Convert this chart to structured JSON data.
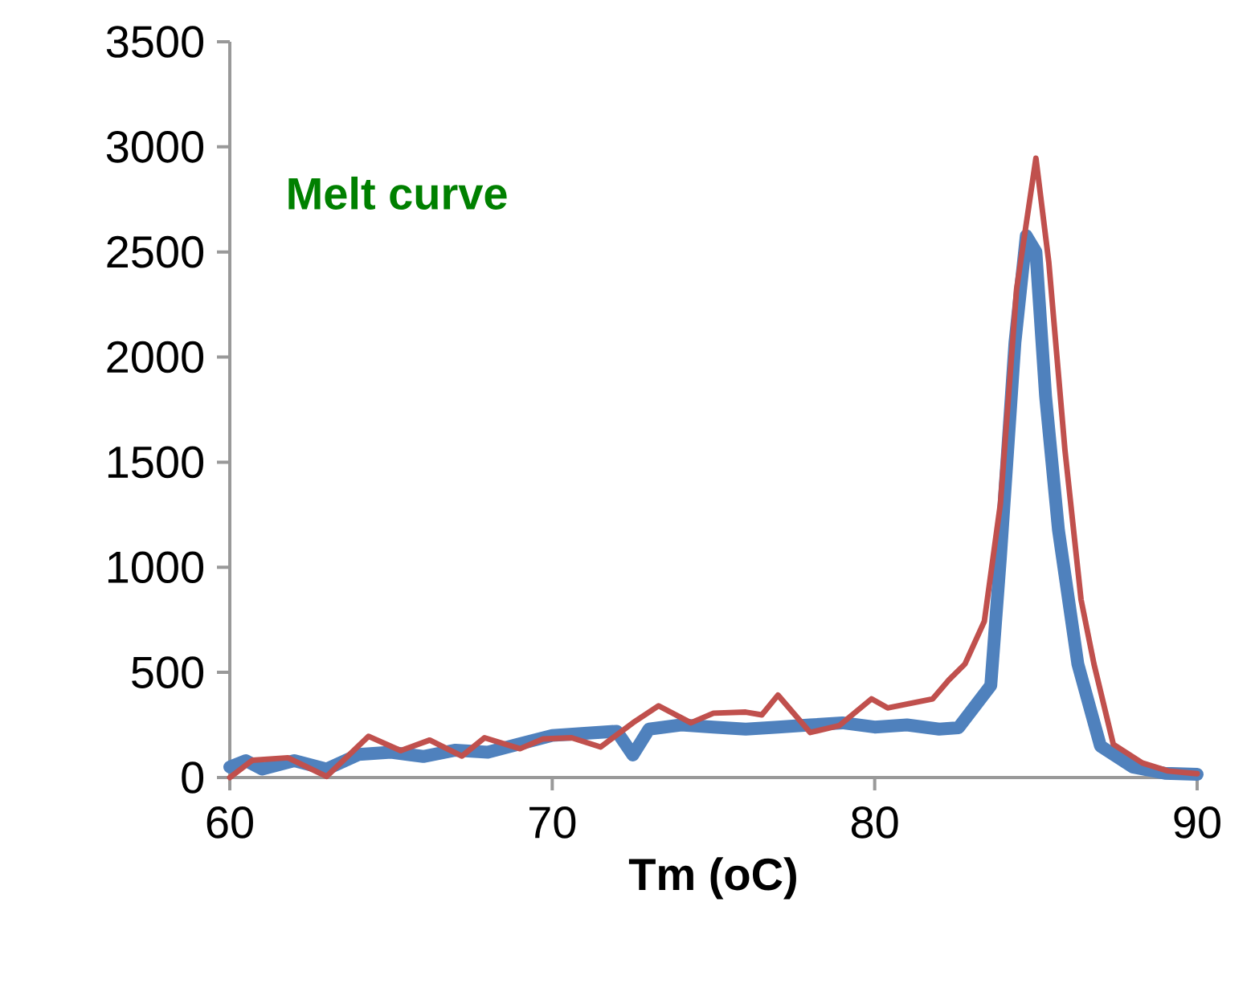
{
  "chart_data": {
    "type": "line",
    "xlabel": "Tm (oC)",
    "annotations": [
      "Melt curve"
    ],
    "xlim": [
      60,
      90
    ],
    "ylim": [
      0,
      3500
    ],
    "xticks": [
      60,
      70,
      80,
      90
    ],
    "yticks": [
      0,
      500,
      1000,
      1500,
      2000,
      2500,
      3000,
      3500
    ],
    "series": [
      {
        "color": "#4f81bd",
        "x": [
          60,
          60.5,
          61,
          62,
          63,
          64,
          65,
          66,
          67,
          68,
          69,
          70,
          71,
          72,
          72.5,
          73,
          74,
          75,
          76,
          77,
          78,
          79,
          80,
          81,
          82,
          82.6,
          83.6,
          83.9,
          84.35,
          84.7,
          85,
          85.3,
          85.7,
          86.3,
          87,
          88,
          89,
          90
        ],
        "values": [
          50,
          80,
          40,
          80,
          40,
          110,
          120,
          100,
          130,
          120,
          160,
          200,
          210,
          220,
          107,
          230,
          250,
          240,
          230,
          240,
          250,
          260,
          240,
          250,
          230,
          237,
          438,
          1049,
          2070,
          2577,
          2500,
          1813,
          1176,
          540,
          150,
          50,
          20,
          15
        ]
      },
      {
        "color": "#c0504d",
        "x": [
          60,
          60.7,
          61.8,
          63,
          64.3,
          65.3,
          66.2,
          67.2,
          67.9,
          69,
          69.7,
          70.6,
          71.5,
          72.5,
          73.3,
          74.3,
          75,
          76,
          76.5,
          77,
          78,
          78.9,
          79.9,
          80.4,
          81.8,
          82.3,
          82.8,
          83.4,
          83.9,
          84.4,
          85,
          85.4,
          85.9,
          86.4,
          86.8,
          87.4,
          88.3,
          89.1,
          90
        ],
        "values": [
          0,
          82,
          94,
          5,
          196,
          128,
          178,
          102,
          189,
          137,
          183,
          189,
          145,
          260,
          341,
          260,
          306,
          311,
          298,
          392,
          214,
          247,
          374,
          331,
          374,
          464,
          540,
          743,
          1304,
          2322,
          2946,
          2450,
          1558,
          846,
          540,
          158,
          69,
          31,
          18
        ]
      }
    ]
  }
}
